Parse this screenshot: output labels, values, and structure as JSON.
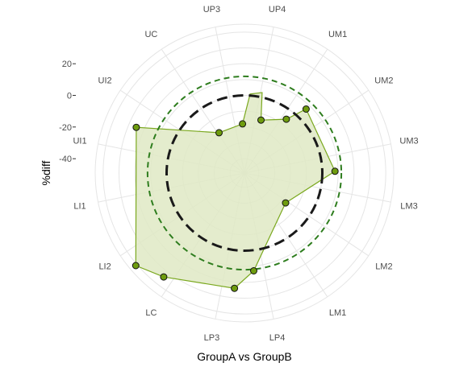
{
  "chart_data": {
    "type": "radial-area",
    "xlabel": "GroupA vs GroupB",
    "ylabel": "%diff",
    "categories": [
      "UP4",
      "UM1",
      "UM2",
      "UM3",
      "LM3",
      "LM2",
      "LM1",
      "LP4",
      "LP3",
      "LC",
      "LI2",
      "LI1",
      "UI1",
      "UI2",
      "UC",
      "UP3"
    ],
    "y_ticks": [
      -40,
      -20,
      0,
      20
    ],
    "y_tick_labels": [
      "-40 -",
      "-20 -",
      "0 -",
      "20 -"
    ],
    "radial_axis_reversed": true,
    "series": [
      {
        "values": [
          null,
          null,
          0,
          null,
          null,
          null,
          null,
          null,
          null,
          null,
          null,
          null,
          null,
          null,
          null,
          null
        ],
        "style": "solid-dark"
      },
      {
        "values": [
          null,
          null,
          12,
          null,
          null,
          null,
          null,
          null,
          null,
          null,
          null,
          null,
          null,
          null,
          null,
          null
        ],
        "style": "dashed-green"
      },
      {
        "points": [
          {
            "category": "UP4",
            "offset": 0.05,
            "value": 3
          },
          {
            "category": "UP4",
            "offset": 0.27,
            "value": -14
          },
          {
            "category": "UM1",
            "offset": 0.18,
            "value": -6
          },
          {
            "category": "UM1",
            "offset": 0.45,
            "value": 7
          },
          {
            "category": "UM3",
            "offset": 0.45,
            "value": 8
          },
          {
            "category": "LM2",
            "offset": 0.1,
            "value": -17
          },
          {
            "category": "LP4",
            "offset": 0.26,
            "value": 13
          },
          {
            "category": "LP4",
            "offset": 0.72,
            "value": 24
          },
          {
            "category": "LC",
            "offset": 0.18,
            "value": 34
          },
          {
            "category": "LC",
            "offset": 0.7,
            "value": 41
          },
          {
            "category": "UI1",
            "offset": 0.52,
            "value": 25
          },
          {
            "category": "UC",
            "offset": 0.07,
            "value": -19
          },
          {
            "category": "UP3",
            "offset": 0.4,
            "value": -18
          },
          {
            "category": "UP3",
            "offset": 0.68,
            "value": 1
          }
        ],
        "markers": [
          {
            "category": "UP4",
            "offset": 0.27,
            "value": -14
          },
          {
            "category": "UM1",
            "offset": 0.18,
            "value": -6
          },
          {
            "category": "UM1",
            "offset": 0.45,
            "value": 7
          },
          {
            "category": "UM3",
            "offset": 0.45,
            "value": 8
          },
          {
            "category": "LM2",
            "offset": 0.1,
            "value": -17
          },
          {
            "category": "LP4",
            "offset": 0.26,
            "value": 13
          },
          {
            "category": "LP4",
            "offset": 0.72,
            "value": 24
          },
          {
            "category": "LC",
            "offset": 0.18,
            "value": 34
          },
          {
            "category": "LC",
            "offset": 0.7,
            "value": 41
          },
          {
            "category": "UI1",
            "offset": 0.52,
            "value": 25
          },
          {
            "category": "UC",
            "offset": 0.07,
            "value": -19
          },
          {
            "category": "UP3",
            "offset": 0.4,
            "value": -18
          }
        ],
        "style": "filled-area"
      }
    ],
    "colors": {
      "area_fill": "#dfe9c4",
      "area_stroke": "#7aa81e",
      "marker_fill": "#6e9c0e",
      "solid_ref": "#1a1a1a",
      "dashed_ref": "#2e7d1e",
      "grid": "#e5e5e5"
    },
    "grid": true,
    "legend": "none"
  }
}
